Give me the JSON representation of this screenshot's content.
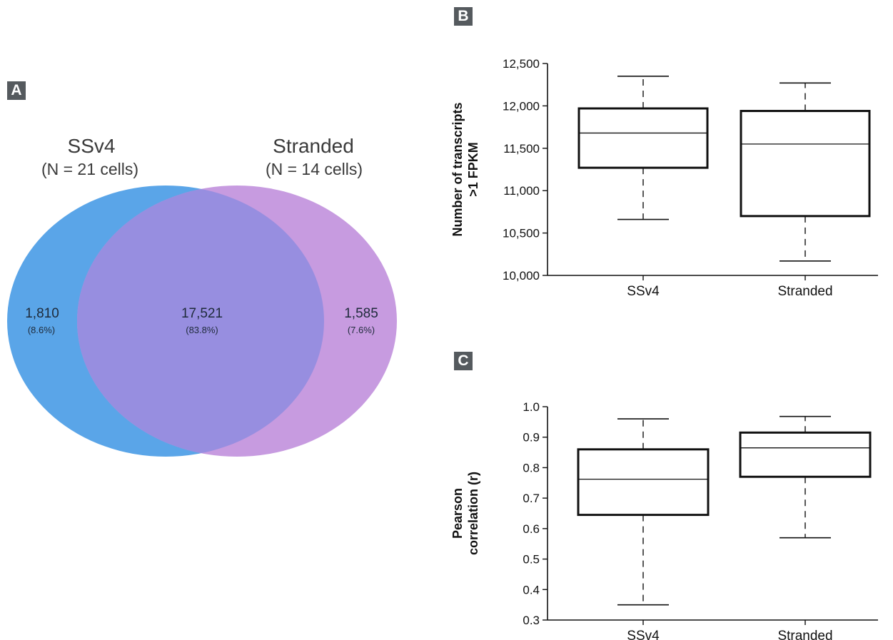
{
  "panels": {
    "a": "A",
    "b": "B",
    "c": "C"
  },
  "colors": {
    "ssv4": "#5aa5e8",
    "stranded": "#c79be0",
    "overlap": "#978ee0"
  },
  "chart_data": [
    {
      "type": "venn",
      "sets": [
        {
          "name": "SSv4",
          "subtitle": "(N = 21 cells)",
          "unique": "1,810",
          "unique_pct": "(8.6%)"
        },
        {
          "name": "Stranded",
          "subtitle": "(N = 14 cells)",
          "unique": "1,585",
          "unique_pct": "(7.6%)"
        }
      ],
      "overlap": "17,521",
      "overlap_pct": "(83.8%)"
    },
    {
      "type": "box",
      "ylabel": [
        "Number of transcripts",
        ">1 FPKM"
      ],
      "ylim": [
        10000,
        12500
      ],
      "yticks": [
        10000,
        10500,
        11000,
        11500,
        12000,
        12500
      ],
      "ytick_labels": [
        "10,000",
        "10,500",
        "11,000",
        "11,500",
        "12,000",
        "12,500"
      ],
      "categories": [
        "SSv4",
        "Stranded"
      ],
      "boxes": [
        {
          "min": 10660,
          "q1": 11270,
          "median": 11680,
          "q3": 11970,
          "max": 12350
        },
        {
          "min": 10170,
          "q1": 10700,
          "median": 11550,
          "q3": 11940,
          "max": 12270
        }
      ]
    },
    {
      "type": "box",
      "ylabel": [
        "Pearson",
        "correlation (r)"
      ],
      "ylim": [
        0.3,
        1.0
      ],
      "yticks": [
        0.3,
        0.4,
        0.5,
        0.6,
        0.7,
        0.8,
        0.9,
        1.0
      ],
      "ytick_labels": [
        "0.3",
        "0.4",
        "0.5",
        "0.6",
        "0.7",
        "0.8",
        "0.9",
        "1.0"
      ],
      "categories": [
        "SSv4",
        "Stranded"
      ],
      "boxes": [
        {
          "min": 0.35,
          "q1": 0.645,
          "median": 0.762,
          "q3": 0.86,
          "max": 0.96
        },
        {
          "min": 0.57,
          "q1": 0.77,
          "median": 0.865,
          "q3": 0.915,
          "max": 0.968
        }
      ]
    }
  ]
}
